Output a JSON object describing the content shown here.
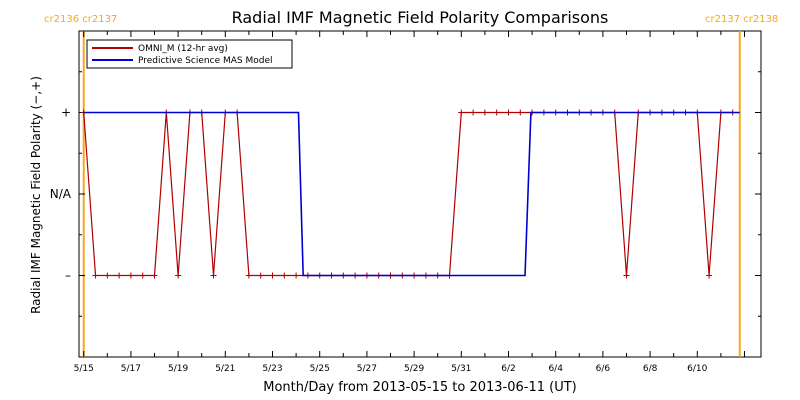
{
  "chart_data": {
    "type": "line",
    "title": "Radial IMF Magnetic Field Polarity Comparisons",
    "xlabel": "Month/Day from 2013-05-15 to 2013-06-11 (UT)",
    "ylabel": "Radial IMF Magnetic Field Polarity (−,+)",
    "x_tick_labels": [
      "5/15",
      "5/17",
      "5/19",
      "5/21",
      "5/23",
      "5/25",
      "5/27",
      "5/29",
      "5/31",
      "6/2",
      "6/4",
      "6/6",
      "6/8",
      "6/10"
    ],
    "y_tick_labels": [
      "+",
      "N/A",
      "–"
    ],
    "y_categories": {
      "plus": 1,
      "na": 0,
      "minus": -1
    },
    "legend_position": "top-left",
    "carrington_labels": [
      {
        "text": "cr2136 cr2137",
        "side": "left"
      },
      {
        "text": "cr2137 cr2138",
        "side": "right"
      }
    ],
    "carrington_markers": [
      0,
      27.8
    ],
    "series": [
      {
        "name": "OMNI_M (12-hr avg)",
        "color": "#b00000",
        "x": [
          0,
          0.5,
          1,
          1.5,
          2,
          2.5,
          3,
          3.5,
          4,
          4.5,
          5,
          5.5,
          6,
          6.5,
          7,
          7.5,
          8,
          8.5,
          9,
          9.5,
          10,
          10.5,
          11,
          11.5,
          12,
          12.5,
          13,
          13.5,
          14,
          14.5,
          15,
          15.5,
          16,
          16.5,
          17,
          17.5,
          18,
          18.5,
          19,
          19.5,
          20,
          20.5,
          21,
          21.5,
          22,
          22.5,
          23,
          23.5,
          24,
          24.5,
          25,
          25.5,
          26,
          26.5,
          27,
          27.5
        ],
        "values": [
          1,
          -1,
          -1,
          -1,
          -1,
          -1,
          -1,
          1,
          -1,
          1,
          1,
          -1,
          1,
          1,
          -1,
          -1,
          -1,
          -1,
          -1,
          -1,
          -1,
          -1,
          -1,
          -1,
          -1,
          -1,
          -1,
          -1,
          -1,
          -1,
          -1,
          -1,
          1,
          1,
          1,
          1,
          1,
          1,
          1,
          1,
          1,
          1,
          1,
          1,
          1,
          1,
          -1,
          1,
          1,
          1,
          1,
          1,
          1,
          -1,
          1,
          1
        ]
      },
      {
        "name": "Predictive Science MAS Model",
        "color": "#0000d0",
        "x": [
          0,
          9.1,
          9.3,
          18.7,
          18.95,
          27.8
        ],
        "values": [
          1,
          1,
          -1,
          -1,
          1,
          1
        ]
      }
    ],
    "xlim": [
      -0.2,
      28.7
    ],
    "ylim": [
      -2,
      2
    ],
    "colors": {
      "axis": "#000000",
      "carrington": "#f5a623",
      "background": "#ffffff"
    }
  }
}
